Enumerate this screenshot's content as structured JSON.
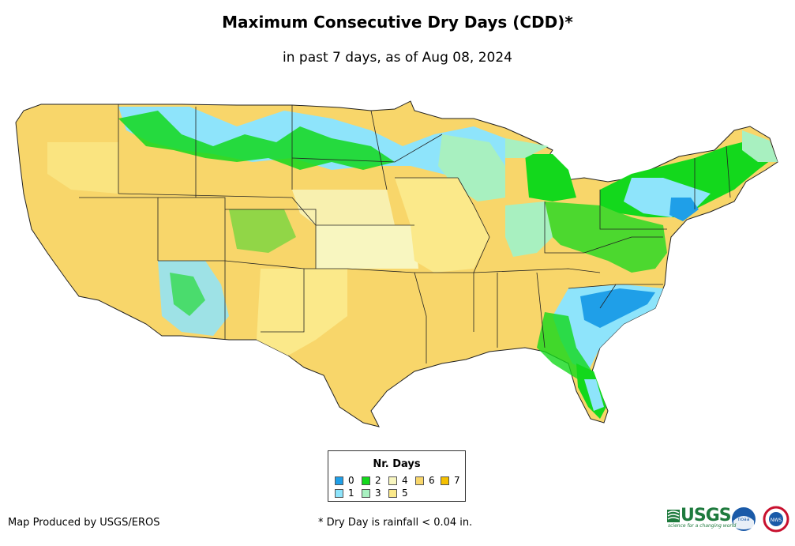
{
  "title": "Maximum Consecutive Dry Days (CDD)*",
  "subtitle": "in past 7 days, as of Aug 08, 2024",
  "legend": {
    "title": "Nr. Days",
    "items": [
      {
        "label": "0",
        "color": "#1f9fe8"
      },
      {
        "label": "1",
        "color": "#8ee4fb"
      },
      {
        "label": "2",
        "color": "#13d81c"
      },
      {
        "label": "3",
        "color": "#a8f0c0"
      },
      {
        "label": "4",
        "color": "#f8f6c0"
      },
      {
        "label": "5",
        "color": "#fbe98a"
      },
      {
        "label": "6",
        "color": "#f8d66a"
      },
      {
        "label": "7",
        "color": "#f5c000"
      }
    ]
  },
  "credit": "Map Produced by USGS/EROS",
  "footnote": "* Dry Day is rainfall < 0.04 in.",
  "logos": {
    "usgs": "USGS",
    "usgs_tagline": "science for a changing world",
    "noaa": "noaa",
    "nws": "NWS"
  }
}
